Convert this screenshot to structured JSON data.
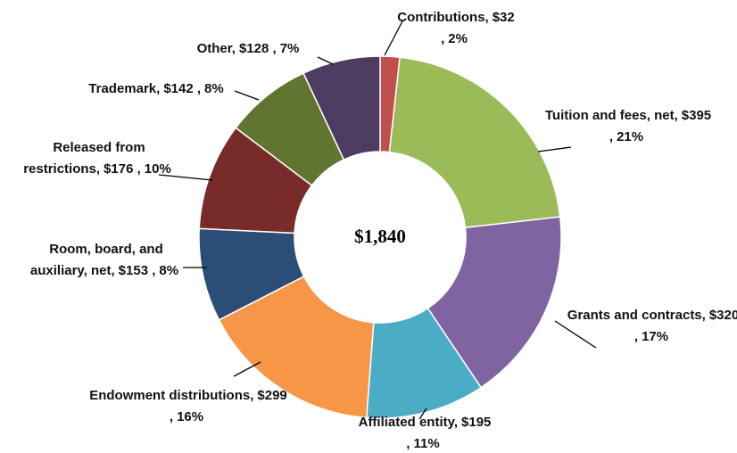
{
  "chart_data": {
    "type": "donut",
    "categories": [
      "Contributions,",
      "Tuition and fees, net,",
      "Grants and contracts,",
      "Affiliated entity,",
      "Endowment distributions,",
      "Room, board, and auxiliary, net,",
      "Released from restrictions,",
      "Trademark,",
      "Other,"
    ],
    "values": [
      32,
      395,
      320,
      195,
      299,
      153,
      176,
      142,
      128
    ],
    "value_labels": [
      "$32 ,",
      "$395 ,",
      "$320 ,",
      "$195 ,",
      "$299 ,",
      "$153 ,",
      "$176 ,",
      "$142 ,",
      "$128 ,"
    ],
    "percentages": [
      2,
      21,
      17,
      11,
      16,
      8,
      10,
      8,
      7
    ],
    "percentage_labels": [
      "2%",
      "21%",
      "17%",
      "11%",
      "16%",
      "8%",
      "10%",
      "8%",
      "7%"
    ],
    "colors": [
      "#c0504d",
      "#9bbb59",
      "#8064a2",
      "#4bacc6",
      "#f79646",
      "#2c4d75",
      "#772c2a",
      "#5f7530",
      "#4d3b62"
    ],
    "total": {
      "value": 1840,
      "label": "$1,840"
    }
  }
}
